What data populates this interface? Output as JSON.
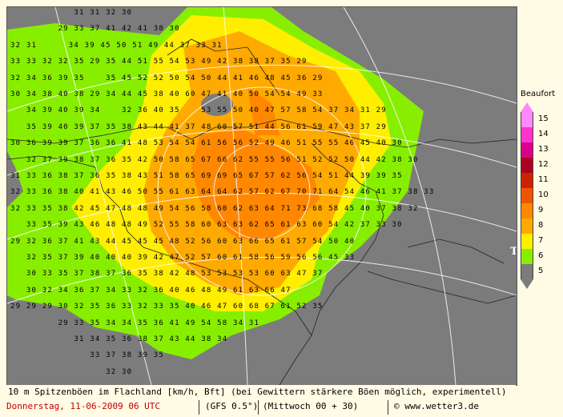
{
  "caption": {
    "line1": "10 m Spitzenböen im Flachland [km/h, Bft] (bei Gewittern stärkere Böen möglich, experimentell)",
    "date": "Donnerstag, 11-06-2009  06 UTC",
    "model": "(GFS 0.5°)",
    "run": "(Mittwoch 00 + 30)",
    "copyright": "© www.wetter3.de"
  },
  "map_marker": "T",
  "legend": {
    "title": "Beaufort",
    "items": [
      {
        "label": "15",
        "color": "#ff88ff"
      },
      {
        "label": "14",
        "color": "#ff33cc"
      },
      {
        "label": "13",
        "color": "#dd0088"
      },
      {
        "label": "12",
        "color": "#aa0022"
      },
      {
        "label": "11",
        "color": "#cc2200"
      },
      {
        "label": "10",
        "color": "#ee5500"
      },
      {
        "label": "9",
        "color": "#ff8800"
      },
      {
        "label": "8",
        "color": "#ffaa00"
      },
      {
        "label": "7",
        "color": "#ffee00"
      },
      {
        "label": "6",
        "color": "#88ee00"
      },
      {
        "label": "5",
        "color": "#7c7c7c"
      }
    ]
  },
  "grid_rows": [
    "            31 31 32 30",
    "         29 33 37 41 42 41 38 30",
    "32 31      34 39 45 50 51 49 44 37 33 31",
    "33 33 32 32 35 29 35 44 51 55 54 53 49 42 38 38 37 35 29",
    "32 34 36 39 35    35 45 52 52 50 54 50 44 41 46 48 45 36 29",
    "30 34 38 40 38 29 34 44 45 38 40 60 47 41 40 50 54 54 49 33",
    "   34 39 40 39 34    32 36 40 35    53 55 50 40 47 57 58 54 37 34 31 29",
    "   35 39 40 39 37 35 38 43 44 41 37 48 60 57 51 44 56 61 59 47 43 37 29",
    "30 36 39 39 37 36 36 41 48 53 54 54 61 56 56 52 49 46 51 55 55 46 45 40 30",
    "   32 37 39 38 37 36 35 42 50 58 65 67 66 62 55 55 56 51 52 52 50 44 42 38 30",
    "31 33 36 38 37 36 35 38 43 51 58 65 69 69 65 67 57 62 56 54 51 44 39 39 35",
    "32 33 36 38 40 41 43 46 50 55 61 63 64 64 62 57 62 67 70 71 64 54 46 41 37 38 33",
    "32 33 35 38 42 45 47 48 48 49 54 56 58 60 62 63 64 71 73 68 58 45 40 37 38 32",
    "   33 35 39 43 46 48 48 49 52 55 58 60 63 63 62 65 61 63 60 54 42 37 33 30",
    "29 32 36 37 41 43 44 45 45 45 48 52 56 60 63 66 65 61 57 54 50 40",
    "   32 35 37 39 40 40 40 39 42 47 52 57 60 61 58 56 59 56 56 45 33",
    "   30 33 35 37 38 37 36 35 38 42 48 53 53 53 53 60 63 47 37",
    "   30 32 34 36 37 34 33 32 36 40 46 48 49 61 63 66 47",
    "29 29 29 30 32 35 36 33 32 33 35 40 46 47 60 68 67 61 52 35",
    "         29 33 35 34 34 35 36 41 49 54 58 34 31",
    "            31 34 35 36 38 37 43 44 38 34",
    "               33 37 38 39 35",
    "                  32 30"
  ]
}
